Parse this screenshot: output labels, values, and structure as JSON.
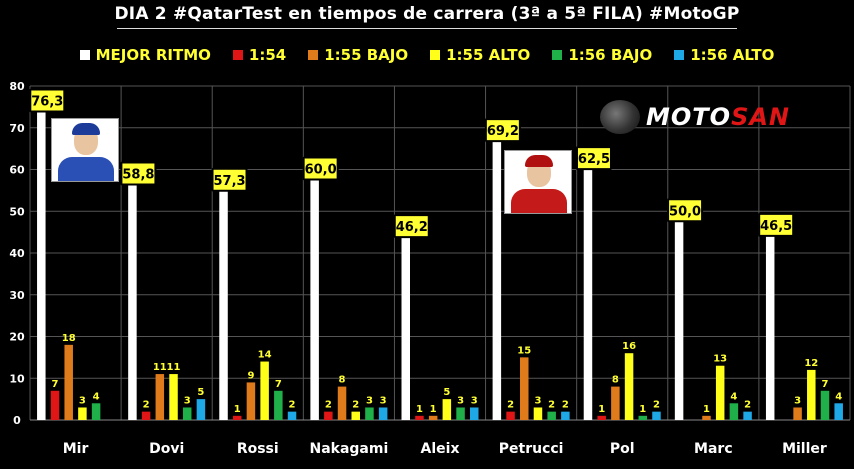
{
  "title": "DIA 2 #QatarTest en tiempos de carrera (3ª a 5ª FILA) #MotoGP",
  "logo": {
    "part1": "MOTO",
    "part2": "SAN"
  },
  "colors": {
    "background": "#000000",
    "grid": "#555555",
    "mejor_ritmo": "#ffffff",
    "s154": "#e01616",
    "s155bajo": "#e07b1c",
    "s155alto": "#ffff1a",
    "s156bajo": "#1fb04a",
    "s156alto": "#1ea8e6",
    "label_box": "#ffff33"
  },
  "chart_data": {
    "type": "bar",
    "title": "DIA 2 #QatarTest en tiempos de carrera (3ª a 5ª FILA) #MotoGP",
    "xlabel": "",
    "ylabel": "",
    "ylim": [
      0,
      80
    ],
    "yticks": [
      0,
      10,
      20,
      30,
      40,
      50,
      60,
      70,
      80
    ],
    "grid": true,
    "legend_position": "top",
    "categories": [
      "Mir",
      "Dovi",
      "Rossi",
      "Nakagami",
      "Aleix",
      "Petrucci",
      "Pol",
      "Marc",
      "Miller"
    ],
    "series": [
      {
        "key": "mejor_ritmo",
        "name": "MEJOR RITMO",
        "color": "#ffffff",
        "values": [
          76.3,
          58.8,
          57.3,
          60.0,
          46.2,
          69.2,
          62.5,
          50.0,
          46.5
        ],
        "labels": [
          "76,3",
          "58,8",
          "57,3",
          "60,0",
          "46,2",
          "69,2",
          "62,5",
          "50,0",
          "46,5"
        ]
      },
      {
        "key": "s154",
        "name": "1:54",
        "color": "#e01616",
        "values": [
          7,
          2,
          1,
          2,
          1,
          2,
          1,
          0,
          0
        ],
        "labels": [
          "7",
          "2",
          "1",
          "2",
          "1",
          "2",
          "1",
          "",
          ""
        ]
      },
      {
        "key": "s155bajo",
        "name": "1:55 BAJO",
        "color": "#e07b1c",
        "values": [
          18,
          11,
          9,
          8,
          1,
          15,
          8,
          1,
          3
        ],
        "labels": [
          "18",
          "11",
          "9",
          "8",
          "1",
          "15",
          "8",
          "1",
          "3"
        ]
      },
      {
        "key": "s155alto",
        "name": "1:55 ALTO",
        "color": "#ffff1a",
        "values": [
          3,
          11,
          14,
          2,
          5,
          3,
          16,
          13,
          12
        ],
        "labels": [
          "3",
          "11",
          "14",
          "2",
          "5",
          "3",
          "16",
          "13",
          "12"
        ]
      },
      {
        "key": "s156bajo",
        "name": "1:56 BAJO",
        "color": "#1fb04a",
        "values": [
          4,
          3,
          7,
          3,
          3,
          2,
          1,
          4,
          7
        ],
        "labels": [
          "4",
          "3",
          "7",
          "3",
          "3",
          "2",
          "1",
          "4",
          "7"
        ]
      },
      {
        "key": "s156alto",
        "name": "1:56 ALTO",
        "color": "#1ea8e6",
        "values": [
          0,
          5,
          2,
          3,
          3,
          2,
          2,
          2,
          4
        ],
        "labels": [
          "",
          "5",
          "2",
          "3",
          "3",
          "2",
          "2",
          "2",
          "4"
        ]
      }
    ]
  }
}
